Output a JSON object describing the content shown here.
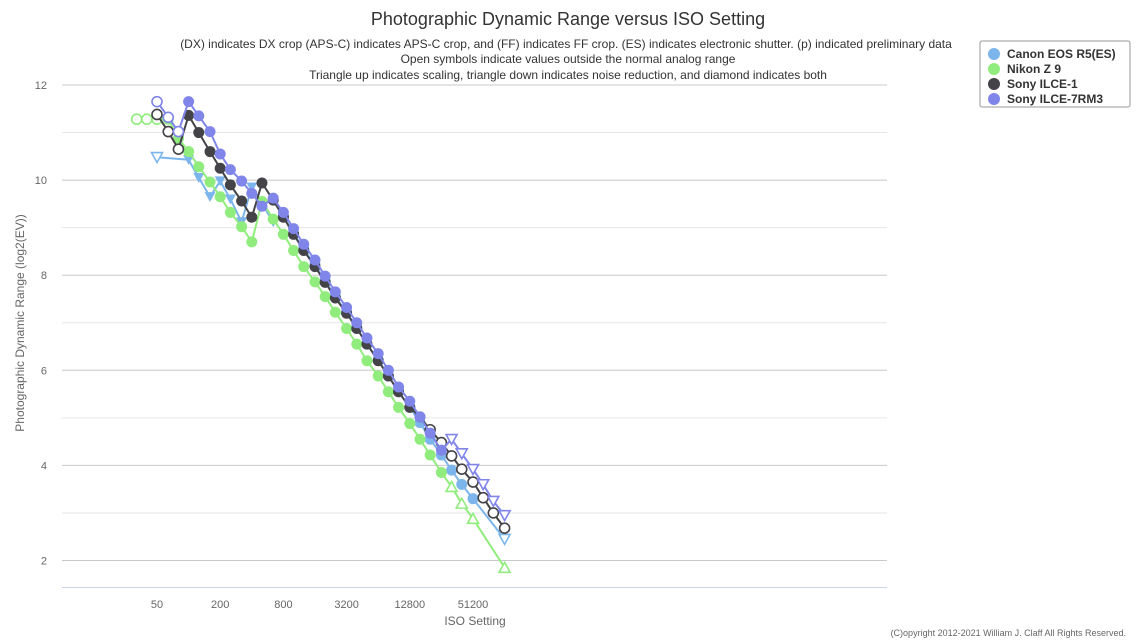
{
  "chart_data": {
    "type": "line",
    "title": "Photographic Dynamic Range versus ISO Setting",
    "subtitles": [
      "(DX) indicates DX crop (APS-C) indicates APS-C crop, and (FF) indicates FF crop. (ES) indicates electronic shutter. (p) indicated preliminary data",
      "Open symbols indicate values outside the normal analog range",
      "Triangle up indicates scaling, triangle down indicates noise reduction, and diamond indicates both"
    ],
    "xlabel": "ISO Setting",
    "ylabel": "Photographic Dynamic Range (log2(EV))",
    "x_scale": "log2",
    "x_ticks": [
      "50",
      "200",
      "800",
      "3200",
      "12800",
      "51200"
    ],
    "y_ticks": [
      "2",
      "4",
      "6",
      "8",
      "10",
      "12"
    ],
    "ylim": [
      1.5,
      12.5
    ],
    "grid": "horizontal",
    "legend_placement": "top-right",
    "copyright": "(C)opyright 2012-2021 William J. Claff All Rights Reserved.",
    "series": [
      {
        "name": "Canon EOS R5(ES)",
        "color": "#7cb5ec",
        "points": [
          {
            "iso": 50,
            "dr": 10.48,
            "m": "tri-down-open"
          },
          {
            "iso": 100,
            "dr": 10.43,
            "m": "tri-down"
          },
          {
            "iso": 125,
            "dr": 10.05,
            "m": "tri-down"
          },
          {
            "iso": 160,
            "dr": 9.65,
            "m": "tri-down"
          },
          {
            "iso": 200,
            "dr": 9.98,
            "m": "tri-down"
          },
          {
            "iso": 250,
            "dr": 9.6,
            "m": "tri-down"
          },
          {
            "iso": 320,
            "dr": 9.12,
            "m": "tri-down"
          },
          {
            "iso": 400,
            "dr": 9.85,
            "m": "tri-down"
          },
          {
            "iso": 500,
            "dr": 9.5,
            "m": "tri-down"
          },
          {
            "iso": 640,
            "dr": 9.12,
            "m": "tri-down"
          },
          {
            "iso": 800,
            "dr": 9.25,
            "m": "circle"
          },
          {
            "iso": 1000,
            "dr": 8.88,
            "m": "circle"
          },
          {
            "iso": 1250,
            "dr": 8.55,
            "m": "circle"
          },
          {
            "iso": 1600,
            "dr": 8.22,
            "m": "circle"
          },
          {
            "iso": 2000,
            "dr": 7.88,
            "m": "circle"
          },
          {
            "iso": 2500,
            "dr": 7.55,
            "m": "circle"
          },
          {
            "iso": 3200,
            "dr": 7.22,
            "m": "circle"
          },
          {
            "iso": 4000,
            "dr": 6.9,
            "m": "circle"
          },
          {
            "iso": 5000,
            "dr": 6.55,
            "m": "circle"
          },
          {
            "iso": 6400,
            "dr": 6.22,
            "m": "circle"
          },
          {
            "iso": 8000,
            "dr": 5.88,
            "m": "circle"
          },
          {
            "iso": 10000,
            "dr": 5.55,
            "m": "circle"
          },
          {
            "iso": 12800,
            "dr": 5.22,
            "m": "circle"
          },
          {
            "iso": 16000,
            "dr": 4.9,
            "m": "circle"
          },
          {
            "iso": 20000,
            "dr": 4.55,
            "m": "circle"
          },
          {
            "iso": 25600,
            "dr": 4.22,
            "m": "circle"
          },
          {
            "iso": 32000,
            "dr": 3.9,
            "m": "circle"
          },
          {
            "iso": 40000,
            "dr": 3.6,
            "m": "circle"
          },
          {
            "iso": 51200,
            "dr": 3.3,
            "m": "circle"
          },
          {
            "iso": 102400,
            "dr": 2.45,
            "m": "tri-down-open"
          }
        ]
      },
      {
        "name": "Nikon Z 9",
        "color": "#90ed7d",
        "points": [
          {
            "iso": 32,
            "dr": 11.28,
            "m": "circle-open"
          },
          {
            "iso": 40,
            "dr": 11.28,
            "m": "circle-open"
          },
          {
            "iso": 50,
            "dr": 11.28,
            "m": "circle-open"
          },
          {
            "iso": 64,
            "dr": 11.28,
            "m": "circle"
          },
          {
            "iso": 80,
            "dr": 10.88,
            "m": "circle"
          },
          {
            "iso": 100,
            "dr": 10.6,
            "m": "circle"
          },
          {
            "iso": 125,
            "dr": 10.28,
            "m": "circle"
          },
          {
            "iso": 160,
            "dr": 9.96,
            "m": "circle"
          },
          {
            "iso": 200,
            "dr": 9.65,
            "m": "circle"
          },
          {
            "iso": 250,
            "dr": 9.32,
            "m": "circle"
          },
          {
            "iso": 320,
            "dr": 9.02,
            "m": "circle"
          },
          {
            "iso": 400,
            "dr": 8.7,
            "m": "circle"
          },
          {
            "iso": 500,
            "dr": 9.55,
            "m": "circle"
          },
          {
            "iso": 640,
            "dr": 9.18,
            "m": "circle"
          },
          {
            "iso": 800,
            "dr": 8.86,
            "m": "circle"
          },
          {
            "iso": 1000,
            "dr": 8.52,
            "m": "circle"
          },
          {
            "iso": 1250,
            "dr": 8.18,
            "m": "circle"
          },
          {
            "iso": 1600,
            "dr": 7.86,
            "m": "circle"
          },
          {
            "iso": 2000,
            "dr": 7.55,
            "m": "circle"
          },
          {
            "iso": 2500,
            "dr": 7.22,
            "m": "circle"
          },
          {
            "iso": 3200,
            "dr": 6.88,
            "m": "circle"
          },
          {
            "iso": 4000,
            "dr": 6.55,
            "m": "circle"
          },
          {
            "iso": 5000,
            "dr": 6.2,
            "m": "circle"
          },
          {
            "iso": 6400,
            "dr": 5.88,
            "m": "circle"
          },
          {
            "iso": 8000,
            "dr": 5.55,
            "m": "circle"
          },
          {
            "iso": 10000,
            "dr": 5.22,
            "m": "circle"
          },
          {
            "iso": 12800,
            "dr": 4.88,
            "m": "circle"
          },
          {
            "iso": 16000,
            "dr": 4.55,
            "m": "circle"
          },
          {
            "iso": 20000,
            "dr": 4.22,
            "m": "circle"
          },
          {
            "iso": 25600,
            "dr": 3.85,
            "m": "circle"
          },
          {
            "iso": 32000,
            "dr": 3.55,
            "m": "tri-up-open"
          },
          {
            "iso": 40000,
            "dr": 3.2,
            "m": "tri-up-open"
          },
          {
            "iso": 51200,
            "dr": 2.88,
            "m": "tri-up-open"
          },
          {
            "iso": 102400,
            "dr": 1.85,
            "m": "tri-up-open"
          }
        ]
      },
      {
        "name": "Sony ILCE-1",
        "color": "#434348",
        "points": [
          {
            "iso": 50,
            "dr": 11.38,
            "m": "circle-open"
          },
          {
            "iso": 64,
            "dr": 11.02,
            "m": "circle-open"
          },
          {
            "iso": 80,
            "dr": 10.65,
            "m": "circle-open"
          },
          {
            "iso": 100,
            "dr": 11.36,
            "m": "circle"
          },
          {
            "iso": 125,
            "dr": 11.0,
            "m": "circle"
          },
          {
            "iso": 160,
            "dr": 10.6,
            "m": "circle"
          },
          {
            "iso": 200,
            "dr": 10.25,
            "m": "circle"
          },
          {
            "iso": 250,
            "dr": 9.9,
            "m": "circle"
          },
          {
            "iso": 320,
            "dr": 9.56,
            "m": "circle"
          },
          {
            "iso": 400,
            "dr": 9.22,
            "m": "circle"
          },
          {
            "iso": 500,
            "dr": 9.94,
            "m": "circle"
          },
          {
            "iso": 640,
            "dr": 9.58,
            "m": "circle"
          },
          {
            "iso": 800,
            "dr": 9.22,
            "m": "circle"
          },
          {
            "iso": 1000,
            "dr": 8.86,
            "m": "circle"
          },
          {
            "iso": 1250,
            "dr": 8.52,
            "m": "circle"
          },
          {
            "iso": 1600,
            "dr": 8.18,
            "m": "circle"
          },
          {
            "iso": 2000,
            "dr": 7.85,
            "m": "circle"
          },
          {
            "iso": 2500,
            "dr": 7.52,
            "m": "circle"
          },
          {
            "iso": 3200,
            "dr": 7.2,
            "m": "circle"
          },
          {
            "iso": 4000,
            "dr": 6.88,
            "m": "circle"
          },
          {
            "iso": 5000,
            "dr": 6.55,
            "m": "circle"
          },
          {
            "iso": 6400,
            "dr": 6.2,
            "m": "circle"
          },
          {
            "iso": 8000,
            "dr": 5.88,
            "m": "circle"
          },
          {
            "iso": 10000,
            "dr": 5.55,
            "m": "circle"
          },
          {
            "iso": 12800,
            "dr": 5.22,
            "m": "circle"
          },
          {
            "iso": 16000,
            "dr": 5.02,
            "m": "circle"
          },
          {
            "iso": 20000,
            "dr": 4.75,
            "m": "circle-open"
          },
          {
            "iso": 25600,
            "dr": 4.48,
            "m": "circle-open"
          },
          {
            "iso": 32000,
            "dr": 4.2,
            "m": "circle-open"
          },
          {
            "iso": 40000,
            "dr": 3.92,
            "m": "circle-open"
          },
          {
            "iso": 51200,
            "dr": 3.65,
            "m": "circle-open"
          },
          {
            "iso": 64000,
            "dr": 3.32,
            "m": "circle-open"
          },
          {
            "iso": 80000,
            "dr": 3.0,
            "m": "circle-open"
          },
          {
            "iso": 102400,
            "dr": 2.68,
            "m": "circle-open"
          }
        ]
      },
      {
        "name": "Sony ILCE-7RM3",
        "color": "#8085e9",
        "points": [
          {
            "iso": 50,
            "dr": 11.65,
            "m": "circle-open"
          },
          {
            "iso": 64,
            "dr": 11.32,
            "m": "circle-open"
          },
          {
            "iso": 80,
            "dr": 11.02,
            "m": "circle-open"
          },
          {
            "iso": 100,
            "dr": 11.65,
            "m": "circle"
          },
          {
            "iso": 125,
            "dr": 11.35,
            "m": "circle"
          },
          {
            "iso": 160,
            "dr": 11.02,
            "m": "circle"
          },
          {
            "iso": 200,
            "dr": 10.55,
            "m": "circle"
          },
          {
            "iso": 250,
            "dr": 10.22,
            "m": "circle"
          },
          {
            "iso": 320,
            "dr": 9.98,
            "m": "circle"
          },
          {
            "iso": 400,
            "dr": 9.72,
            "m": "circle"
          },
          {
            "iso": 500,
            "dr": 9.45,
            "m": "circle"
          },
          {
            "iso": 640,
            "dr": 9.62,
            "m": "circle"
          },
          {
            "iso": 800,
            "dr": 9.32,
            "m": "circle"
          },
          {
            "iso": 1000,
            "dr": 8.98,
            "m": "circle"
          },
          {
            "iso": 1250,
            "dr": 8.65,
            "m": "circle"
          },
          {
            "iso": 1600,
            "dr": 8.32,
            "m": "circle"
          },
          {
            "iso": 2000,
            "dr": 7.98,
            "m": "circle"
          },
          {
            "iso": 2500,
            "dr": 7.65,
            "m": "circle"
          },
          {
            "iso": 3200,
            "dr": 7.32,
            "m": "circle"
          },
          {
            "iso": 4000,
            "dr": 7.0,
            "m": "circle"
          },
          {
            "iso": 5000,
            "dr": 6.68,
            "m": "circle"
          },
          {
            "iso": 6400,
            "dr": 6.35,
            "m": "circle"
          },
          {
            "iso": 8000,
            "dr": 6.0,
            "m": "circle"
          },
          {
            "iso": 10000,
            "dr": 5.65,
            "m": "circle"
          },
          {
            "iso": 12800,
            "dr": 5.35,
            "m": "circle"
          },
          {
            "iso": 16000,
            "dr": 5.02,
            "m": "circle"
          },
          {
            "iso": 20000,
            "dr": 4.68,
            "m": "circle"
          },
          {
            "iso": 25600,
            "dr": 4.32,
            "m": "circle"
          },
          {
            "iso": 32000,
            "dr": 4.55,
            "m": "tri-down-open"
          },
          {
            "iso": 40000,
            "dr": 4.25,
            "m": "tri-down-open"
          },
          {
            "iso": 51200,
            "dr": 3.92,
            "m": "tri-down-open"
          },
          {
            "iso": 64000,
            "dr": 3.6,
            "m": "tri-down-open"
          },
          {
            "iso": 80000,
            "dr": 3.25,
            "m": "tri-down-open"
          },
          {
            "iso": 102400,
            "dr": 2.95,
            "m": "tri-down-open"
          }
        ]
      }
    ]
  }
}
